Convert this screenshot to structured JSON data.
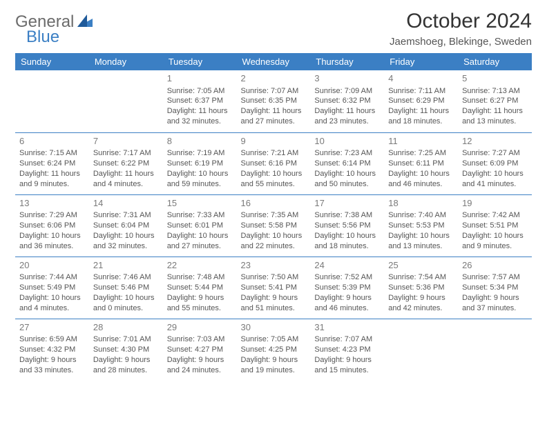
{
  "logo": {
    "text1": "General",
    "text2": "Blue"
  },
  "title": "October 2024",
  "location": "Jaemshoeg, Blekinge, Sweden",
  "colors": {
    "header_bg": "#3b7fc4",
    "header_fg": "#ffffff",
    "border": "#3b7fc4",
    "text": "#555555",
    "daynum": "#7a7a7a"
  },
  "weekdays": [
    "Sunday",
    "Monday",
    "Tuesday",
    "Wednesday",
    "Thursday",
    "Friday",
    "Saturday"
  ],
  "weeks": [
    [
      null,
      null,
      {
        "n": "1",
        "sunrise": "7:05 AM",
        "sunset": "6:37 PM",
        "daylight": "11 hours and 32 minutes."
      },
      {
        "n": "2",
        "sunrise": "7:07 AM",
        "sunset": "6:35 PM",
        "daylight": "11 hours and 27 minutes."
      },
      {
        "n": "3",
        "sunrise": "7:09 AM",
        "sunset": "6:32 PM",
        "daylight": "11 hours and 23 minutes."
      },
      {
        "n": "4",
        "sunrise": "7:11 AM",
        "sunset": "6:29 PM",
        "daylight": "11 hours and 18 minutes."
      },
      {
        "n": "5",
        "sunrise": "7:13 AM",
        "sunset": "6:27 PM",
        "daylight": "11 hours and 13 minutes."
      }
    ],
    [
      {
        "n": "6",
        "sunrise": "7:15 AM",
        "sunset": "6:24 PM",
        "daylight": "11 hours and 9 minutes."
      },
      {
        "n": "7",
        "sunrise": "7:17 AM",
        "sunset": "6:22 PM",
        "daylight": "11 hours and 4 minutes."
      },
      {
        "n": "8",
        "sunrise": "7:19 AM",
        "sunset": "6:19 PM",
        "daylight": "10 hours and 59 minutes."
      },
      {
        "n": "9",
        "sunrise": "7:21 AM",
        "sunset": "6:16 PM",
        "daylight": "10 hours and 55 minutes."
      },
      {
        "n": "10",
        "sunrise": "7:23 AM",
        "sunset": "6:14 PM",
        "daylight": "10 hours and 50 minutes."
      },
      {
        "n": "11",
        "sunrise": "7:25 AM",
        "sunset": "6:11 PM",
        "daylight": "10 hours and 46 minutes."
      },
      {
        "n": "12",
        "sunrise": "7:27 AM",
        "sunset": "6:09 PM",
        "daylight": "10 hours and 41 minutes."
      }
    ],
    [
      {
        "n": "13",
        "sunrise": "7:29 AM",
        "sunset": "6:06 PM",
        "daylight": "10 hours and 36 minutes."
      },
      {
        "n": "14",
        "sunrise": "7:31 AM",
        "sunset": "6:04 PM",
        "daylight": "10 hours and 32 minutes."
      },
      {
        "n": "15",
        "sunrise": "7:33 AM",
        "sunset": "6:01 PM",
        "daylight": "10 hours and 27 minutes."
      },
      {
        "n": "16",
        "sunrise": "7:35 AM",
        "sunset": "5:58 PM",
        "daylight": "10 hours and 22 minutes."
      },
      {
        "n": "17",
        "sunrise": "7:38 AM",
        "sunset": "5:56 PM",
        "daylight": "10 hours and 18 minutes."
      },
      {
        "n": "18",
        "sunrise": "7:40 AM",
        "sunset": "5:53 PM",
        "daylight": "10 hours and 13 minutes."
      },
      {
        "n": "19",
        "sunrise": "7:42 AM",
        "sunset": "5:51 PM",
        "daylight": "10 hours and 9 minutes."
      }
    ],
    [
      {
        "n": "20",
        "sunrise": "7:44 AM",
        "sunset": "5:49 PM",
        "daylight": "10 hours and 4 minutes."
      },
      {
        "n": "21",
        "sunrise": "7:46 AM",
        "sunset": "5:46 PM",
        "daylight": "10 hours and 0 minutes."
      },
      {
        "n": "22",
        "sunrise": "7:48 AM",
        "sunset": "5:44 PM",
        "daylight": "9 hours and 55 minutes."
      },
      {
        "n": "23",
        "sunrise": "7:50 AM",
        "sunset": "5:41 PM",
        "daylight": "9 hours and 51 minutes."
      },
      {
        "n": "24",
        "sunrise": "7:52 AM",
        "sunset": "5:39 PM",
        "daylight": "9 hours and 46 minutes."
      },
      {
        "n": "25",
        "sunrise": "7:54 AM",
        "sunset": "5:36 PM",
        "daylight": "9 hours and 42 minutes."
      },
      {
        "n": "26",
        "sunrise": "7:57 AM",
        "sunset": "5:34 PM",
        "daylight": "9 hours and 37 minutes."
      }
    ],
    [
      {
        "n": "27",
        "sunrise": "6:59 AM",
        "sunset": "4:32 PM",
        "daylight": "9 hours and 33 minutes."
      },
      {
        "n": "28",
        "sunrise": "7:01 AM",
        "sunset": "4:30 PM",
        "daylight": "9 hours and 28 minutes."
      },
      {
        "n": "29",
        "sunrise": "7:03 AM",
        "sunset": "4:27 PM",
        "daylight": "9 hours and 24 minutes."
      },
      {
        "n": "30",
        "sunrise": "7:05 AM",
        "sunset": "4:25 PM",
        "daylight": "9 hours and 19 minutes."
      },
      {
        "n": "31",
        "sunrise": "7:07 AM",
        "sunset": "4:23 PM",
        "daylight": "9 hours and 15 minutes."
      },
      null,
      null
    ]
  ],
  "labels": {
    "sunrise": "Sunrise: ",
    "sunset": "Sunset: ",
    "daylight": "Daylight: "
  }
}
